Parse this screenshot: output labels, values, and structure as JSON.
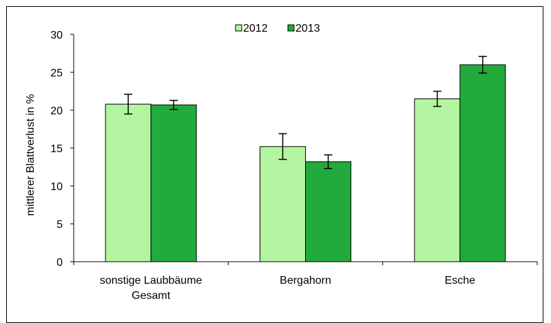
{
  "chart_data": {
    "type": "bar",
    "categories": [
      [
        "sonstige Laubbäume",
        "Gesamt"
      ],
      [
        "Bergahorn"
      ],
      [
        "Esche"
      ]
    ],
    "series": [
      {
        "name": "2012",
        "values": [
          20.8,
          15.2,
          21.5
        ],
        "errors": [
          1.3,
          1.7,
          1.0
        ],
        "color": "#b3f5a0"
      },
      {
        "name": "2013",
        "values": [
          20.7,
          13.2,
          26.0
        ],
        "errors": [
          0.6,
          0.9,
          1.1
        ],
        "color": "#22aa3c"
      }
    ],
    "ylabel": "mittlerer Blattverlust in %",
    "xlabel": "",
    "ylim": [
      0,
      30
    ],
    "yticks": [
      "0",
      "5",
      "10",
      "15",
      "20",
      "25",
      "30"
    ],
    "legend_position": "top-center",
    "grid": false
  }
}
